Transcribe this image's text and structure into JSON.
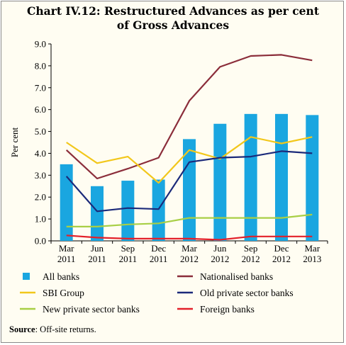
{
  "chart_data": {
    "type": "bar",
    "title_line1": "Chart IV.12: Restructured Advances as per cent",
    "title_line2": "of Gross Advances",
    "ylabel": "Per cent",
    "xlabel": "",
    "ylim": [
      0,
      9
    ],
    "yticks": [
      "0.0",
      "1.0",
      "2.0",
      "3.0",
      "4.0",
      "5.0",
      "6.0",
      "7.0",
      "8.0",
      "9.0"
    ],
    "categories": [
      [
        "Mar",
        "2011"
      ],
      [
        "Jun",
        "2011"
      ],
      [
        "Sep",
        "2011"
      ],
      [
        "Dec",
        "2011"
      ],
      [
        "Mar",
        "2012"
      ],
      [
        "Jun",
        "2012"
      ],
      [
        "Sep",
        "2012"
      ],
      [
        "Dec",
        "2012"
      ],
      [
        "Mar",
        "2013"
      ]
    ],
    "bar_series": {
      "name": "All banks",
      "color": "#1aa6e0",
      "values": [
        3.5,
        2.5,
        2.75,
        2.8,
        4.65,
        5.35,
        5.8,
        5.8,
        5.75
      ]
    },
    "line_series": [
      {
        "name": "Nationalised banks",
        "color": "#8b2d3a",
        "values": [
          4.15,
          2.85,
          3.3,
          3.8,
          6.4,
          7.95,
          8.45,
          8.5,
          8.25
        ]
      },
      {
        "name": "SBI Group",
        "color": "#f2c71b",
        "values": [
          4.5,
          3.55,
          3.85,
          2.65,
          4.15,
          3.75,
          4.75,
          4.45,
          4.75
        ]
      },
      {
        "name": "Old private sector banks",
        "color": "#1b2a7a",
        "values": [
          2.95,
          1.35,
          1.5,
          1.45,
          3.6,
          3.8,
          3.85,
          4.1,
          4.0
        ]
      },
      {
        "name": "New private sector banks",
        "color": "#a8cf45",
        "values": [
          0.65,
          0.65,
          0.75,
          0.8,
          1.05,
          1.05,
          1.05,
          1.05,
          1.2
        ]
      },
      {
        "name": "Foreign banks",
        "color": "#e3202a",
        "values": [
          0.25,
          0.15,
          0.1,
          0.1,
          0.1,
          0.05,
          0.2,
          0.2,
          0.2
        ]
      }
    ],
    "legend": {
      "placement": "bottom",
      "columns": 2
    }
  },
  "source": {
    "label": "Source",
    "text": ": Off-site returns."
  }
}
